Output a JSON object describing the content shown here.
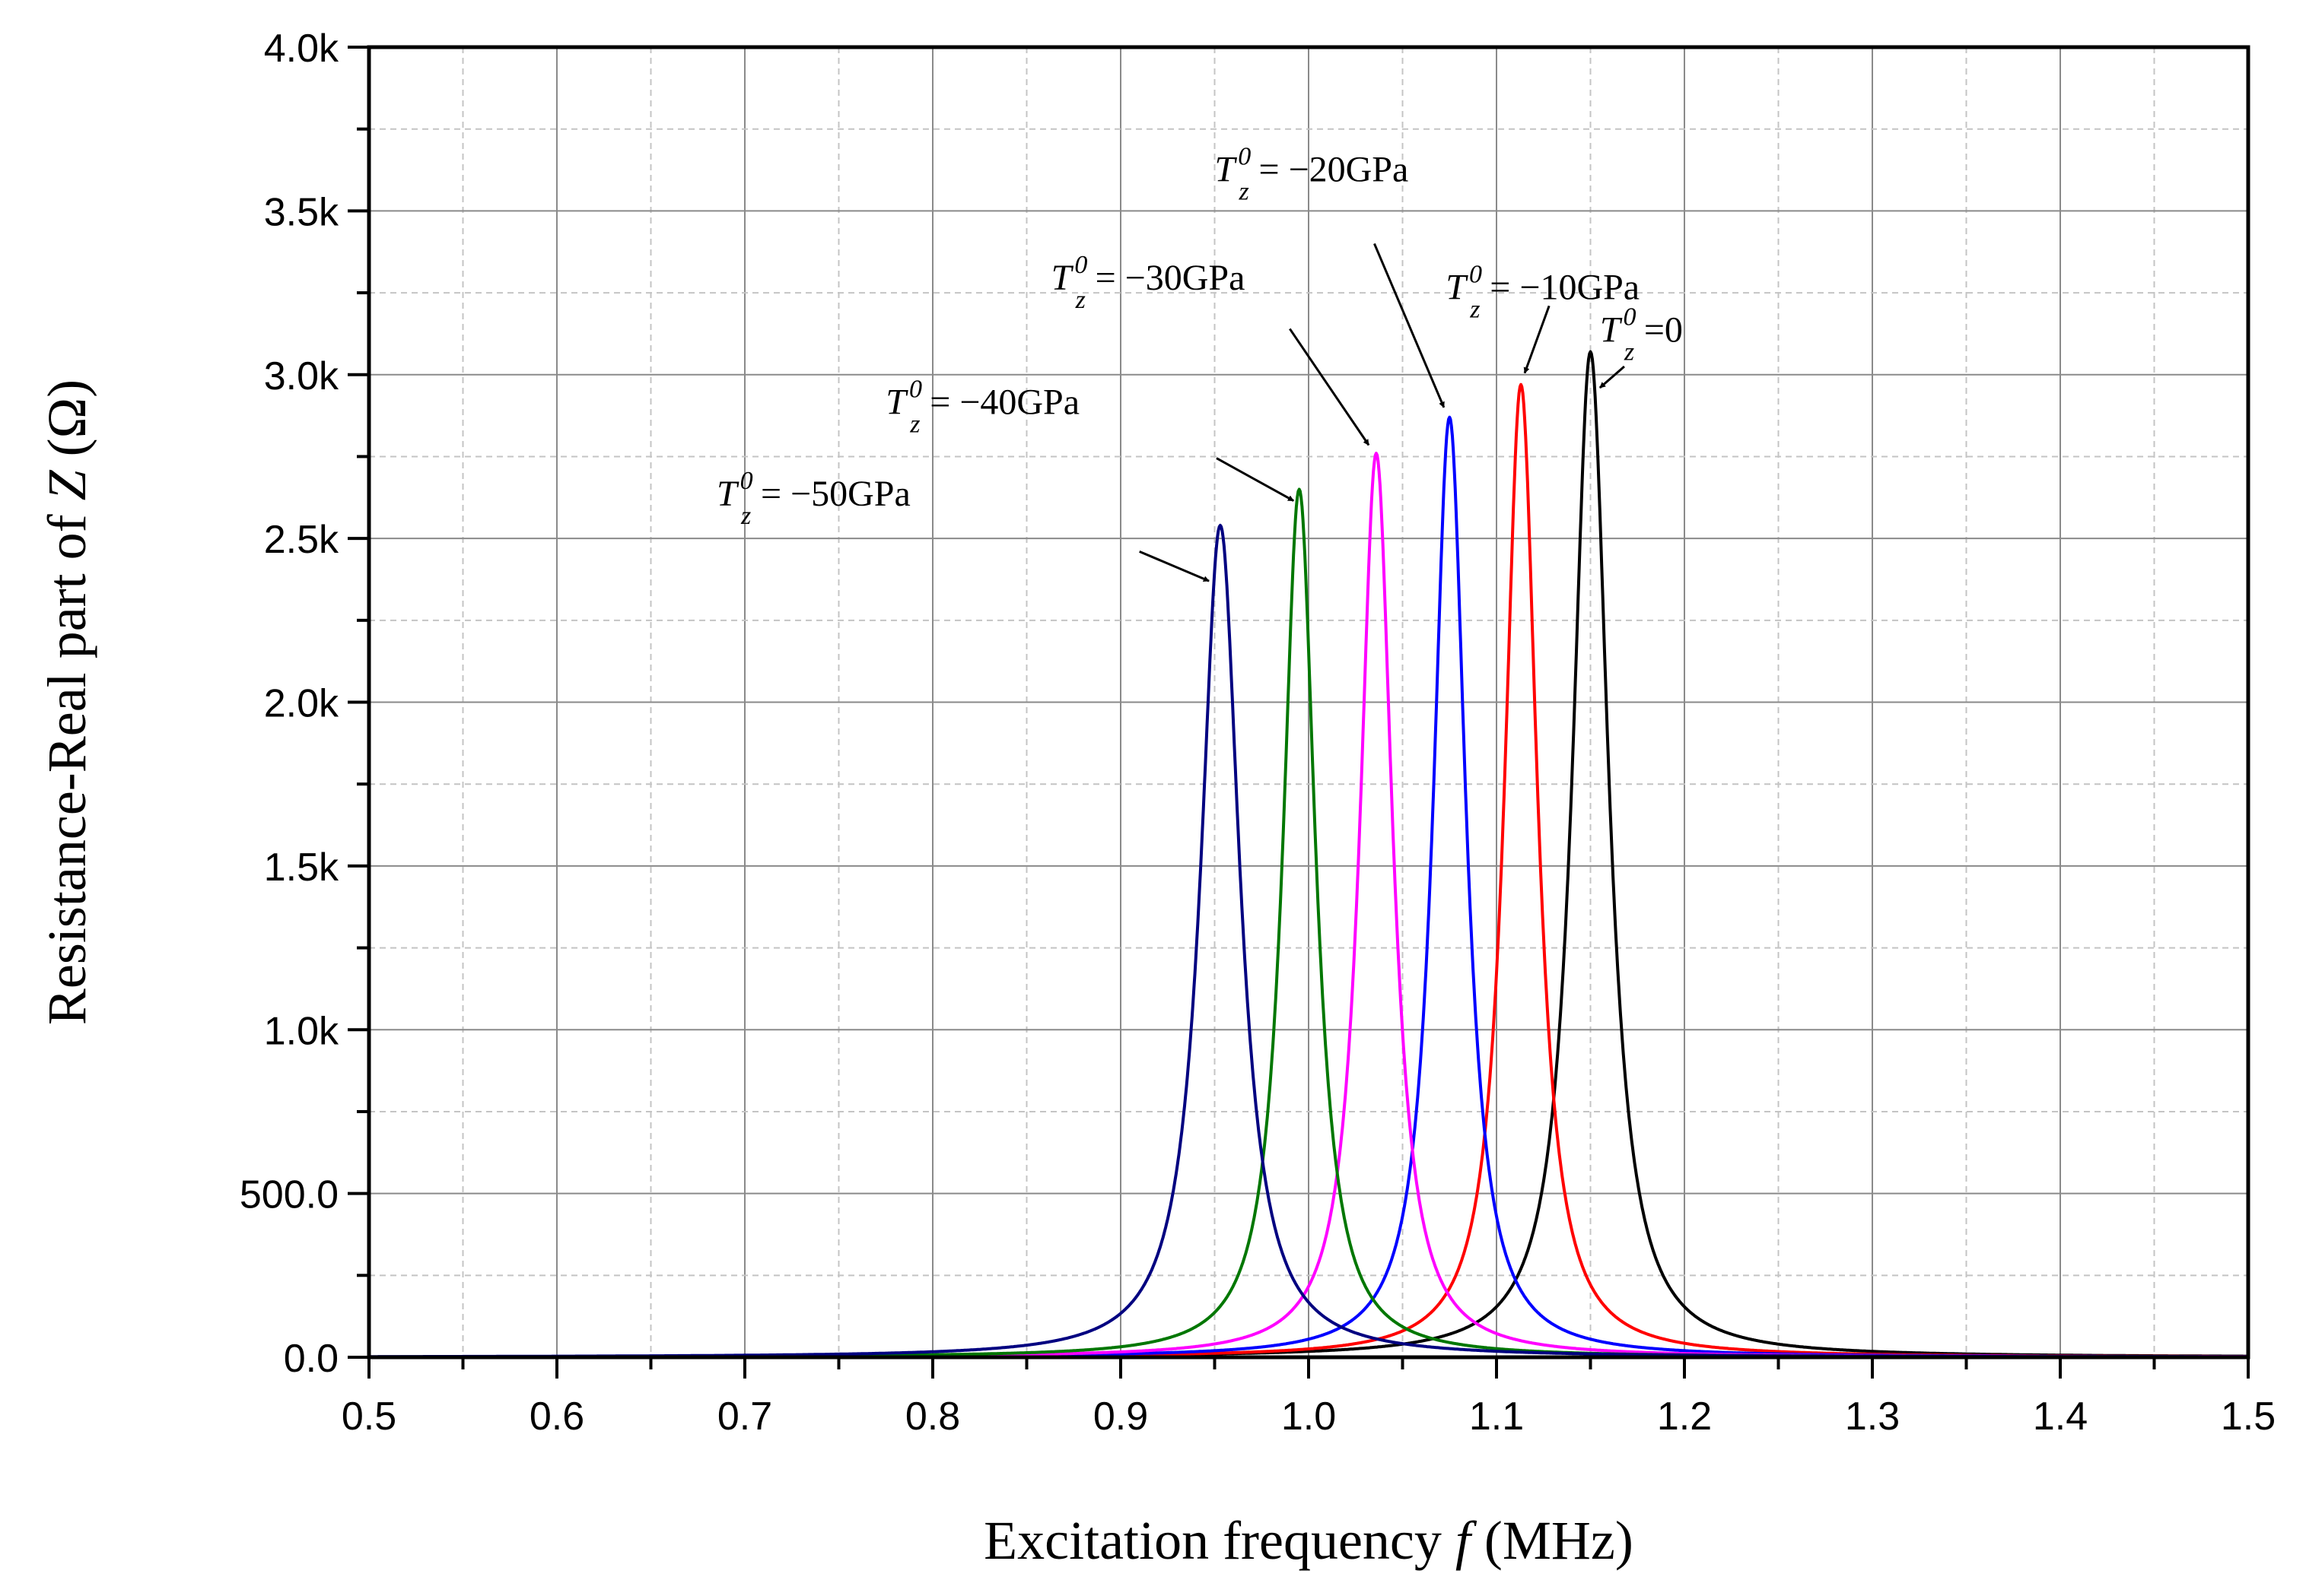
{
  "chart_data": {
    "type": "line",
    "title": "",
    "xlabel": {
      "prefix": "Excitation frequency ",
      "symbol": "f",
      "suffix": " (MHz)"
    },
    "ylabel": {
      "prefix": "Resistance-Real part of ",
      "symbol": "Z",
      "suffix": " (Ω)"
    },
    "xlim": [
      0.5,
      1.5
    ],
    "ylim": [
      0,
      4000
    ],
    "x_ticks": [
      0.5,
      0.6,
      0.7,
      0.8,
      0.9,
      1.0,
      1.1,
      1.2,
      1.3,
      1.4,
      1.5
    ],
    "x_tick_labels": [
      "0.5",
      "0.6",
      "0.7",
      "0.8",
      "0.9",
      "1.0",
      "1.1",
      "1.2",
      "1.3",
      "1.4",
      "1.5"
    ],
    "y_ticks": [
      0,
      500,
      1000,
      1500,
      2000,
      2500,
      3000,
      3500,
      4000
    ],
    "y_tick_labels": [
      "0.0",
      "500.0",
      "1.0k",
      "1.5k",
      "2.0k",
      "2.5k",
      "3.0k",
      "3.5k",
      "4.0k"
    ],
    "grid": true,
    "legend": "none",
    "series": [
      {
        "name": "T_z^0=0",
        "label": {
          "base": "T",
          "sup": "0",
          "sub": "z",
          "rest": "=0"
        },
        "color": "#000000",
        "peak_frequency": 1.15,
        "peak_value": 3070,
        "half_width": 0.0115,
        "label_x": 1.155,
        "label_y": 3100,
        "arrow_from": [
          1.168,
          3025
        ],
        "arrow_to": [
          1.155,
          2960
        ]
      },
      {
        "name": "T_z^0=-10GPa",
        "label": {
          "base": "T",
          "sup": "0",
          "sub": "z",
          "rest": "= −10GPa"
        },
        "color": "#ff0000",
        "peak_frequency": 1.113,
        "peak_value": 2970,
        "half_width": 0.0105,
        "label_x": 1.073,
        "label_y": 3230,
        "arrow_from": [
          1.128,
          3210
        ],
        "arrow_to": [
          1.115,
          3005
        ]
      },
      {
        "name": "T_z^0=-20GPa",
        "label": {
          "base": "T",
          "sup": "0",
          "sub": "z",
          "rest": "= −20GPa"
        },
        "color": "#0000ff",
        "peak_frequency": 1.075,
        "peak_value": 2870,
        "half_width": 0.0105,
        "label_x": 0.95,
        "label_y": 3590,
        "arrow_from": [
          1.035,
          3400
        ],
        "arrow_to": [
          1.072,
          2900
        ]
      },
      {
        "name": "T_z^0=-30GPa",
        "label": {
          "base": "T",
          "sup": "0",
          "sub": "z",
          "rest": "= −30GPa"
        },
        "color": "#ff00ff",
        "peak_frequency": 1.036,
        "peak_value": 2760,
        "half_width": 0.0105,
        "label_x": 0.863,
        "label_y": 3260,
        "arrow_from": [
          0.99,
          3140
        ],
        "arrow_to": [
          1.032,
          2785
        ]
      },
      {
        "name": "T_z^0=-40GPa",
        "label": {
          "base": "T",
          "sup": "0",
          "sub": "z",
          "rest": "= −40GPa"
        },
        "color": "#007700",
        "peak_frequency": 0.995,
        "peak_value": 2650,
        "half_width": 0.0105,
        "label_x": 0.775,
        "label_y": 2880,
        "arrow_from": [
          0.951,
          2745
        ],
        "arrow_to": [
          0.992,
          2615
        ]
      },
      {
        "name": "T_z^0=-50GPa",
        "label": {
          "base": "T",
          "sup": "0",
          "sub": "z",
          "rest": "= −50GPa"
        },
        "color": "#000080",
        "peak_frequency": 0.953,
        "peak_value": 2540,
        "half_width": 0.0125,
        "label_x": 0.685,
        "label_y": 2600,
        "arrow_from": [
          0.91,
          2460
        ],
        "arrow_to": [
          0.947,
          2370
        ]
      }
    ]
  }
}
